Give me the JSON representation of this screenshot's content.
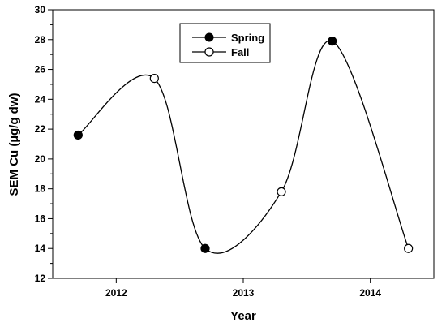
{
  "chart_data": {
    "type": "line",
    "xlabel": "Year",
    "ylabel": "SEM Cu (µg/g dw)",
    "x_ticks": [
      "2012",
      "2013",
      "2014"
    ],
    "y_ticks": [
      12,
      14,
      16,
      18,
      20,
      22,
      24,
      26,
      28,
      30
    ],
    "ylim": [
      12,
      30
    ],
    "xlim": [
      2011.5,
      2014.5
    ],
    "grid": false,
    "legend_position": "top-center",
    "curve": "smooth spline through all points in time order",
    "points": [
      {
        "x": 2011.7,
        "y": 21.6,
        "season": "Spring"
      },
      {
        "x": 2012.3,
        "y": 25.4,
        "season": "Fall"
      },
      {
        "x": 2012.7,
        "y": 14.0,
        "season": "Spring"
      },
      {
        "x": 2013.3,
        "y": 17.8,
        "season": "Fall"
      },
      {
        "x": 2013.7,
        "y": 27.9,
        "season": "Spring"
      },
      {
        "x": 2014.3,
        "y": 14.0,
        "season": "Fall"
      }
    ],
    "series": [
      {
        "name": "Spring",
        "marker": "filled-circle",
        "color": "#000000"
      },
      {
        "name": "Fall",
        "marker": "open-circle",
        "color": "#000000"
      }
    ]
  }
}
